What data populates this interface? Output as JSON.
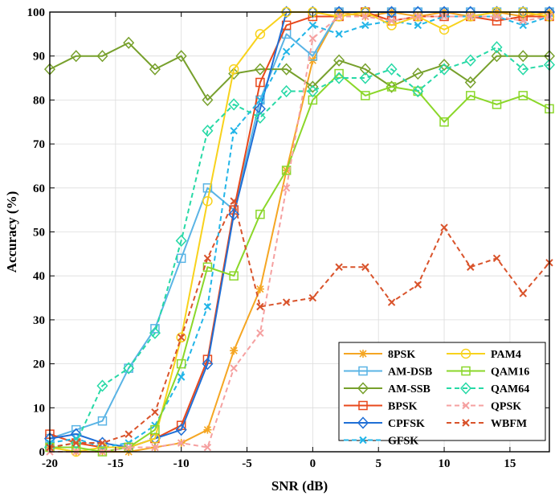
{
  "chart_data": {
    "type": "line",
    "title": "",
    "xlabel": "SNR (dB)",
    "ylabel": "Accuracy (%)",
    "xlim": [
      -20,
      18
    ],
    "ylim": [
      0,
      100
    ],
    "x_ticks": [
      -20,
      -15,
      -10,
      -5,
      0,
      5,
      10,
      15
    ],
    "y_ticks": [
      0,
      10,
      20,
      30,
      40,
      50,
      60,
      70,
      80,
      90,
      100
    ],
    "grid": true,
    "legend_position": "bottom-right",
    "x": [
      -20,
      -18,
      -16,
      -14,
      -12,
      -10,
      -8,
      -6,
      -4,
      -2,
      0,
      2,
      4,
      6,
      8,
      10,
      12,
      14,
      16,
      18
    ],
    "series": [
      {
        "name": "8PSK",
        "color": "#f5a623",
        "dash": "solid",
        "marker": "asterisk",
        "values": [
          1,
          0,
          0,
          0,
          1,
          2,
          5,
          23,
          37,
          64,
          89,
          100,
          99,
          100,
          99,
          100,
          99,
          100,
          99,
          100
        ]
      },
      {
        "name": "AM-DSB",
        "color": "#5ab4e5",
        "dash": "solid",
        "marker": "square",
        "values": [
          3,
          5,
          7,
          19,
          28,
          44,
          60,
          55,
          80,
          95,
          90,
          100,
          100,
          100,
          100,
          100,
          100,
          100,
          100,
          100
        ]
      },
      {
        "name": "AM-SSB",
        "color": "#77a02c",
        "dash": "solid",
        "marker": "diamond",
        "values": [
          87,
          90,
          90,
          93,
          87,
          90,
          80,
          86,
          87,
          87,
          83,
          89,
          87,
          83,
          86,
          88,
          84,
          90,
          90,
          90
        ]
      },
      {
        "name": "BPSK",
        "color": "#e8481c",
        "dash": "solid",
        "marker": "square",
        "values": [
          4,
          2,
          1,
          1,
          3,
          6,
          21,
          55,
          84,
          97,
          99,
          99,
          100,
          98,
          99,
          99,
          99,
          98,
          99,
          99
        ]
      },
      {
        "name": "CPFSK",
        "color": "#1f6fd6",
        "dash": "solid",
        "marker": "diamond",
        "values": [
          3,
          4,
          2,
          1,
          3,
          5,
          20,
          54,
          78,
          100,
          100,
          100,
          100,
          100,
          100,
          100,
          100,
          100,
          100,
          100
        ]
      },
      {
        "name": "GFSK",
        "color": "#22b5e8",
        "dash": "dashed",
        "marker": "x",
        "values": [
          2,
          3,
          1,
          2,
          6,
          17,
          33,
          73,
          80,
          91,
          97,
          95,
          97,
          98,
          97,
          99,
          99,
          99,
          97,
          99
        ]
      },
      {
        "name": "PAM4",
        "color": "#f8d21c",
        "dash": "solid",
        "marker": "circle",
        "values": [
          1,
          0,
          1,
          1,
          3,
          26,
          57,
          87,
          95,
          100,
          100,
          99,
          100,
          97,
          99,
          96,
          99,
          100,
          100,
          99
        ]
      },
      {
        "name": "QAM16",
        "color": "#8bd72a",
        "dash": "solid",
        "marker": "square",
        "values": [
          1,
          1,
          0,
          1,
          5,
          20,
          42,
          40,
          54,
          64,
          80,
          86,
          81,
          83,
          82,
          75,
          81,
          79,
          81,
          78
        ]
      },
      {
        "name": "QAM64",
        "color": "#27d9a6",
        "dash": "dashed",
        "marker": "diamond",
        "values": [
          1,
          2,
          15,
          19,
          27,
          48,
          73,
          79,
          76,
          82,
          82,
          85,
          85,
          87,
          82,
          87,
          89,
          92,
          87,
          88
        ]
      },
      {
        "name": "QPSK",
        "color": "#f5a0a0",
        "dash": "dashed",
        "marker": "x",
        "values": [
          0,
          0,
          0,
          1,
          1,
          2,
          1,
          19,
          27,
          60,
          94,
          99,
          99,
          98,
          99,
          99,
          99,
          99,
          98,
          99
        ]
      },
      {
        "name": "WBFM",
        "color": "#d9532b",
        "dash": "dashed",
        "marker": "x",
        "values": [
          1,
          2,
          2,
          4,
          9,
          26,
          44,
          57,
          33,
          34,
          35,
          42,
          42,
          34,
          38,
          51,
          42,
          44,
          36,
          43
        ]
      }
    ]
  }
}
